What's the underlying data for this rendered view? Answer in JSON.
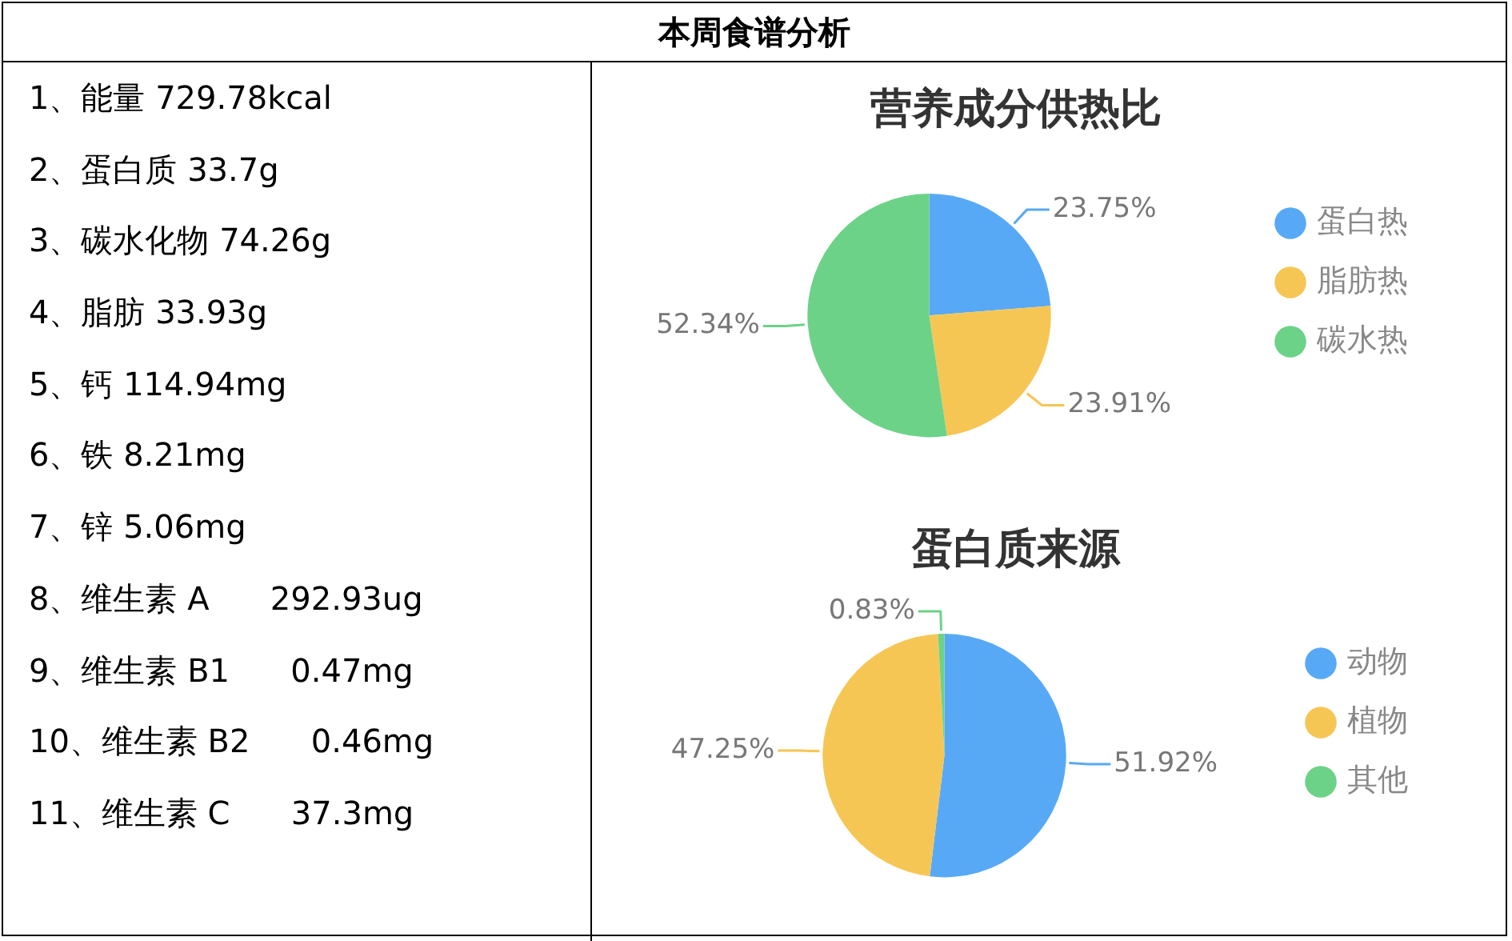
{
  "chart_data": [
    {
      "type": "other",
      "title": "本周食谱分析",
      "annotations": [
        "1、能量 729.78kcal",
        "2、蛋白质 33.7g",
        "3、碳水化物 74.26g",
        "4、脂肪 33.93g",
        "5、钙 114.94mg",
        "6、铁 8.21mg",
        "7、锌 5.06mg",
        "8、维生素 A      292.93ug",
        "9、维生素 B1      0.47mg",
        "10、维生素 B2      0.46mg",
        "11、维生素 C      37.3mg"
      ]
    },
    {
      "type": "pie",
      "title": "营养成分供热比",
      "categories": [
        "蛋白热",
        "脂肪热",
        "碳水热"
      ],
      "values": [
        23.75,
        23.91,
        52.34
      ],
      "value_labels": [
        "23.75%",
        "23.91%",
        "52.34%"
      ],
      "colors": [
        "#58a9f5",
        "#f6c654",
        "#6cd288"
      ],
      "legend": "right"
    },
    {
      "type": "pie",
      "title": "蛋白质来源",
      "categories": [
        "动物",
        "植物",
        "其他"
      ],
      "values": [
        51.92,
        47.25,
        0.83
      ],
      "value_labels": [
        "51.92%",
        "47.25%",
        "0.83%"
      ],
      "colors": [
        "#58a9f5",
        "#f6c654",
        "#6cd288"
      ],
      "legend": "right"
    }
  ]
}
